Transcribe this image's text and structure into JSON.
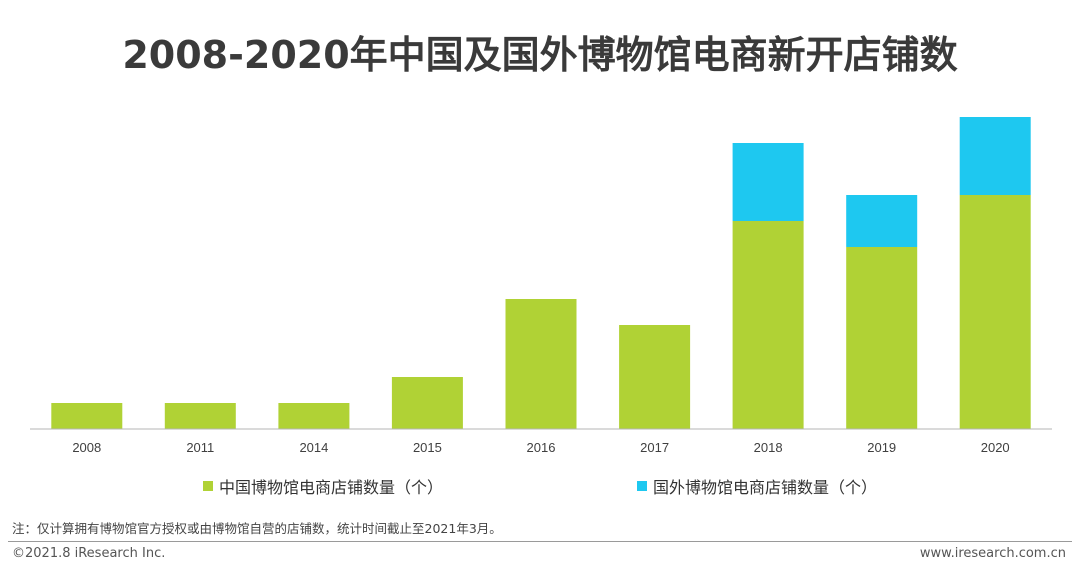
{
  "title": "2008-2020年中国及国外博物馆电商新开店铺数",
  "chart_data": {
    "type": "bar",
    "stacked": true,
    "categories": [
      "2008",
      "2011",
      "2014",
      "2015",
      "2016",
      "2017",
      "2018",
      "2019",
      "2020"
    ],
    "series": [
      {
        "name": "中国博物馆电商店铺数量（个）",
        "color": "#b0d235",
        "values": [
          1,
          1,
          1,
          2,
          5,
          4,
          8,
          7,
          9
        ]
      },
      {
        "name": "国外博物馆电商店铺数量（个）",
        "color": "#1ec8f0",
        "values": [
          0,
          0,
          0,
          0,
          0,
          0,
          3,
          2,
          3
        ]
      }
    ],
    "ylim": [
      0,
      12
    ],
    "grid": false,
    "legend_position": "bottom"
  },
  "note": "注：仅计算拥有博物馆官方授权或由博物馆自营的店铺数，统计时间截止至2021年3月。",
  "footer": {
    "copyright": "©2021.8 iResearch Inc.",
    "website": "www.iresearch.com.cn"
  }
}
